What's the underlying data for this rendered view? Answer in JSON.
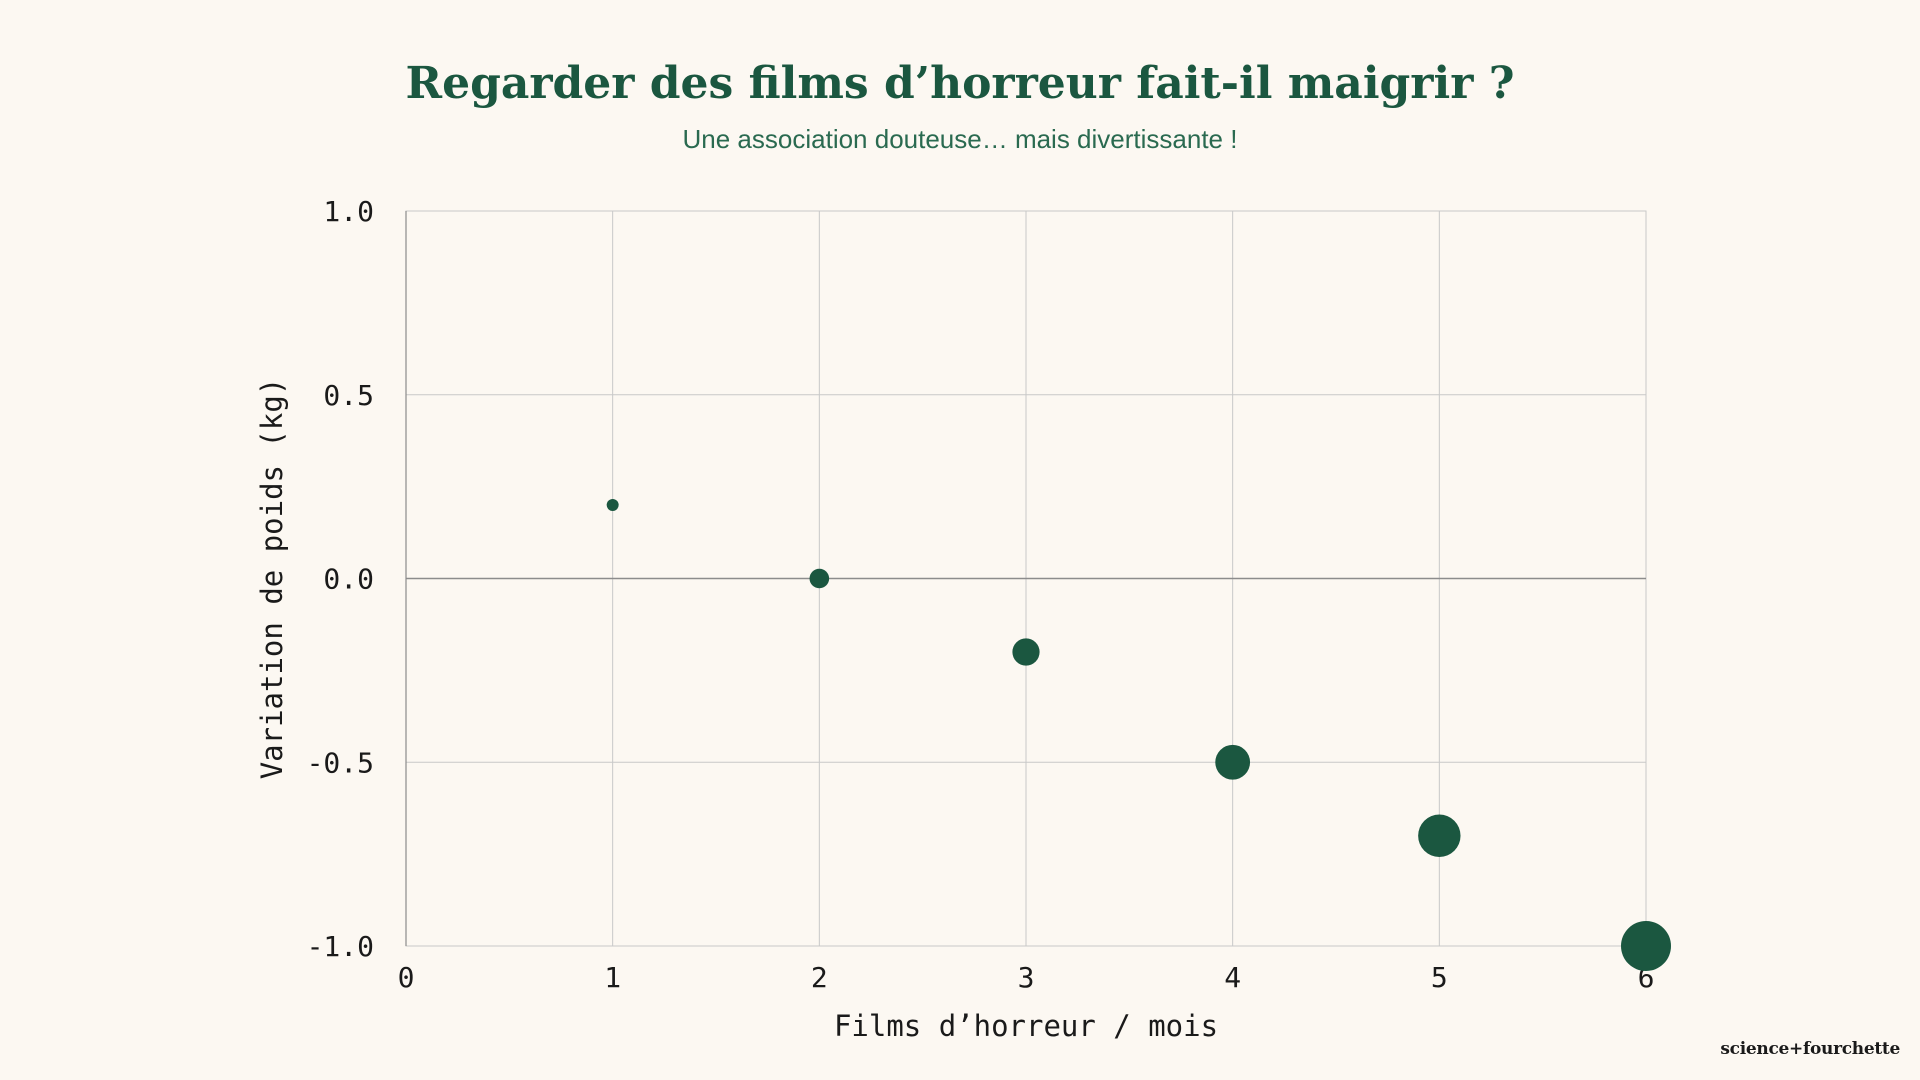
{
  "header": {
    "title": "Regarder des films d’horreur fait-il maigrir ?",
    "subtitle": "Une association douteuse… mais divertissante !"
  },
  "brand": {
    "text": "science+fourchette"
  },
  "colors": {
    "background": "#fcf8f2",
    "accent": "#1b5740",
    "grid": "#c8c8c8",
    "zero_line": "#8c8c8c"
  },
  "chart_data": {
    "type": "scatter",
    "title": "Regarder des films d’horreur fait-il maigrir ?",
    "subtitle": "Une association douteuse… mais divertissante !",
    "xlabel": "Films d’horreur / mois",
    "ylabel": "Variation de poids (kg)",
    "xlim": [
      0,
      6
    ],
    "ylim": [
      -1.0,
      1.0
    ],
    "x_ticks": [
      "0",
      "1",
      "2",
      "3",
      "4",
      "5",
      "6"
    ],
    "y_ticks": [
      "1.0",
      "0.5",
      "0.0",
      "-0.5",
      "-1.0"
    ],
    "grid": true,
    "marker_size_encodes": "x",
    "series": [
      {
        "x": [
          1,
          2,
          3,
          4,
          5,
          6
        ],
        "y": [
          0.2,
          0.0,
          -0.2,
          -0.5,
          -0.7,
          -1.0
        ],
        "color": "#1b5740"
      }
    ]
  }
}
